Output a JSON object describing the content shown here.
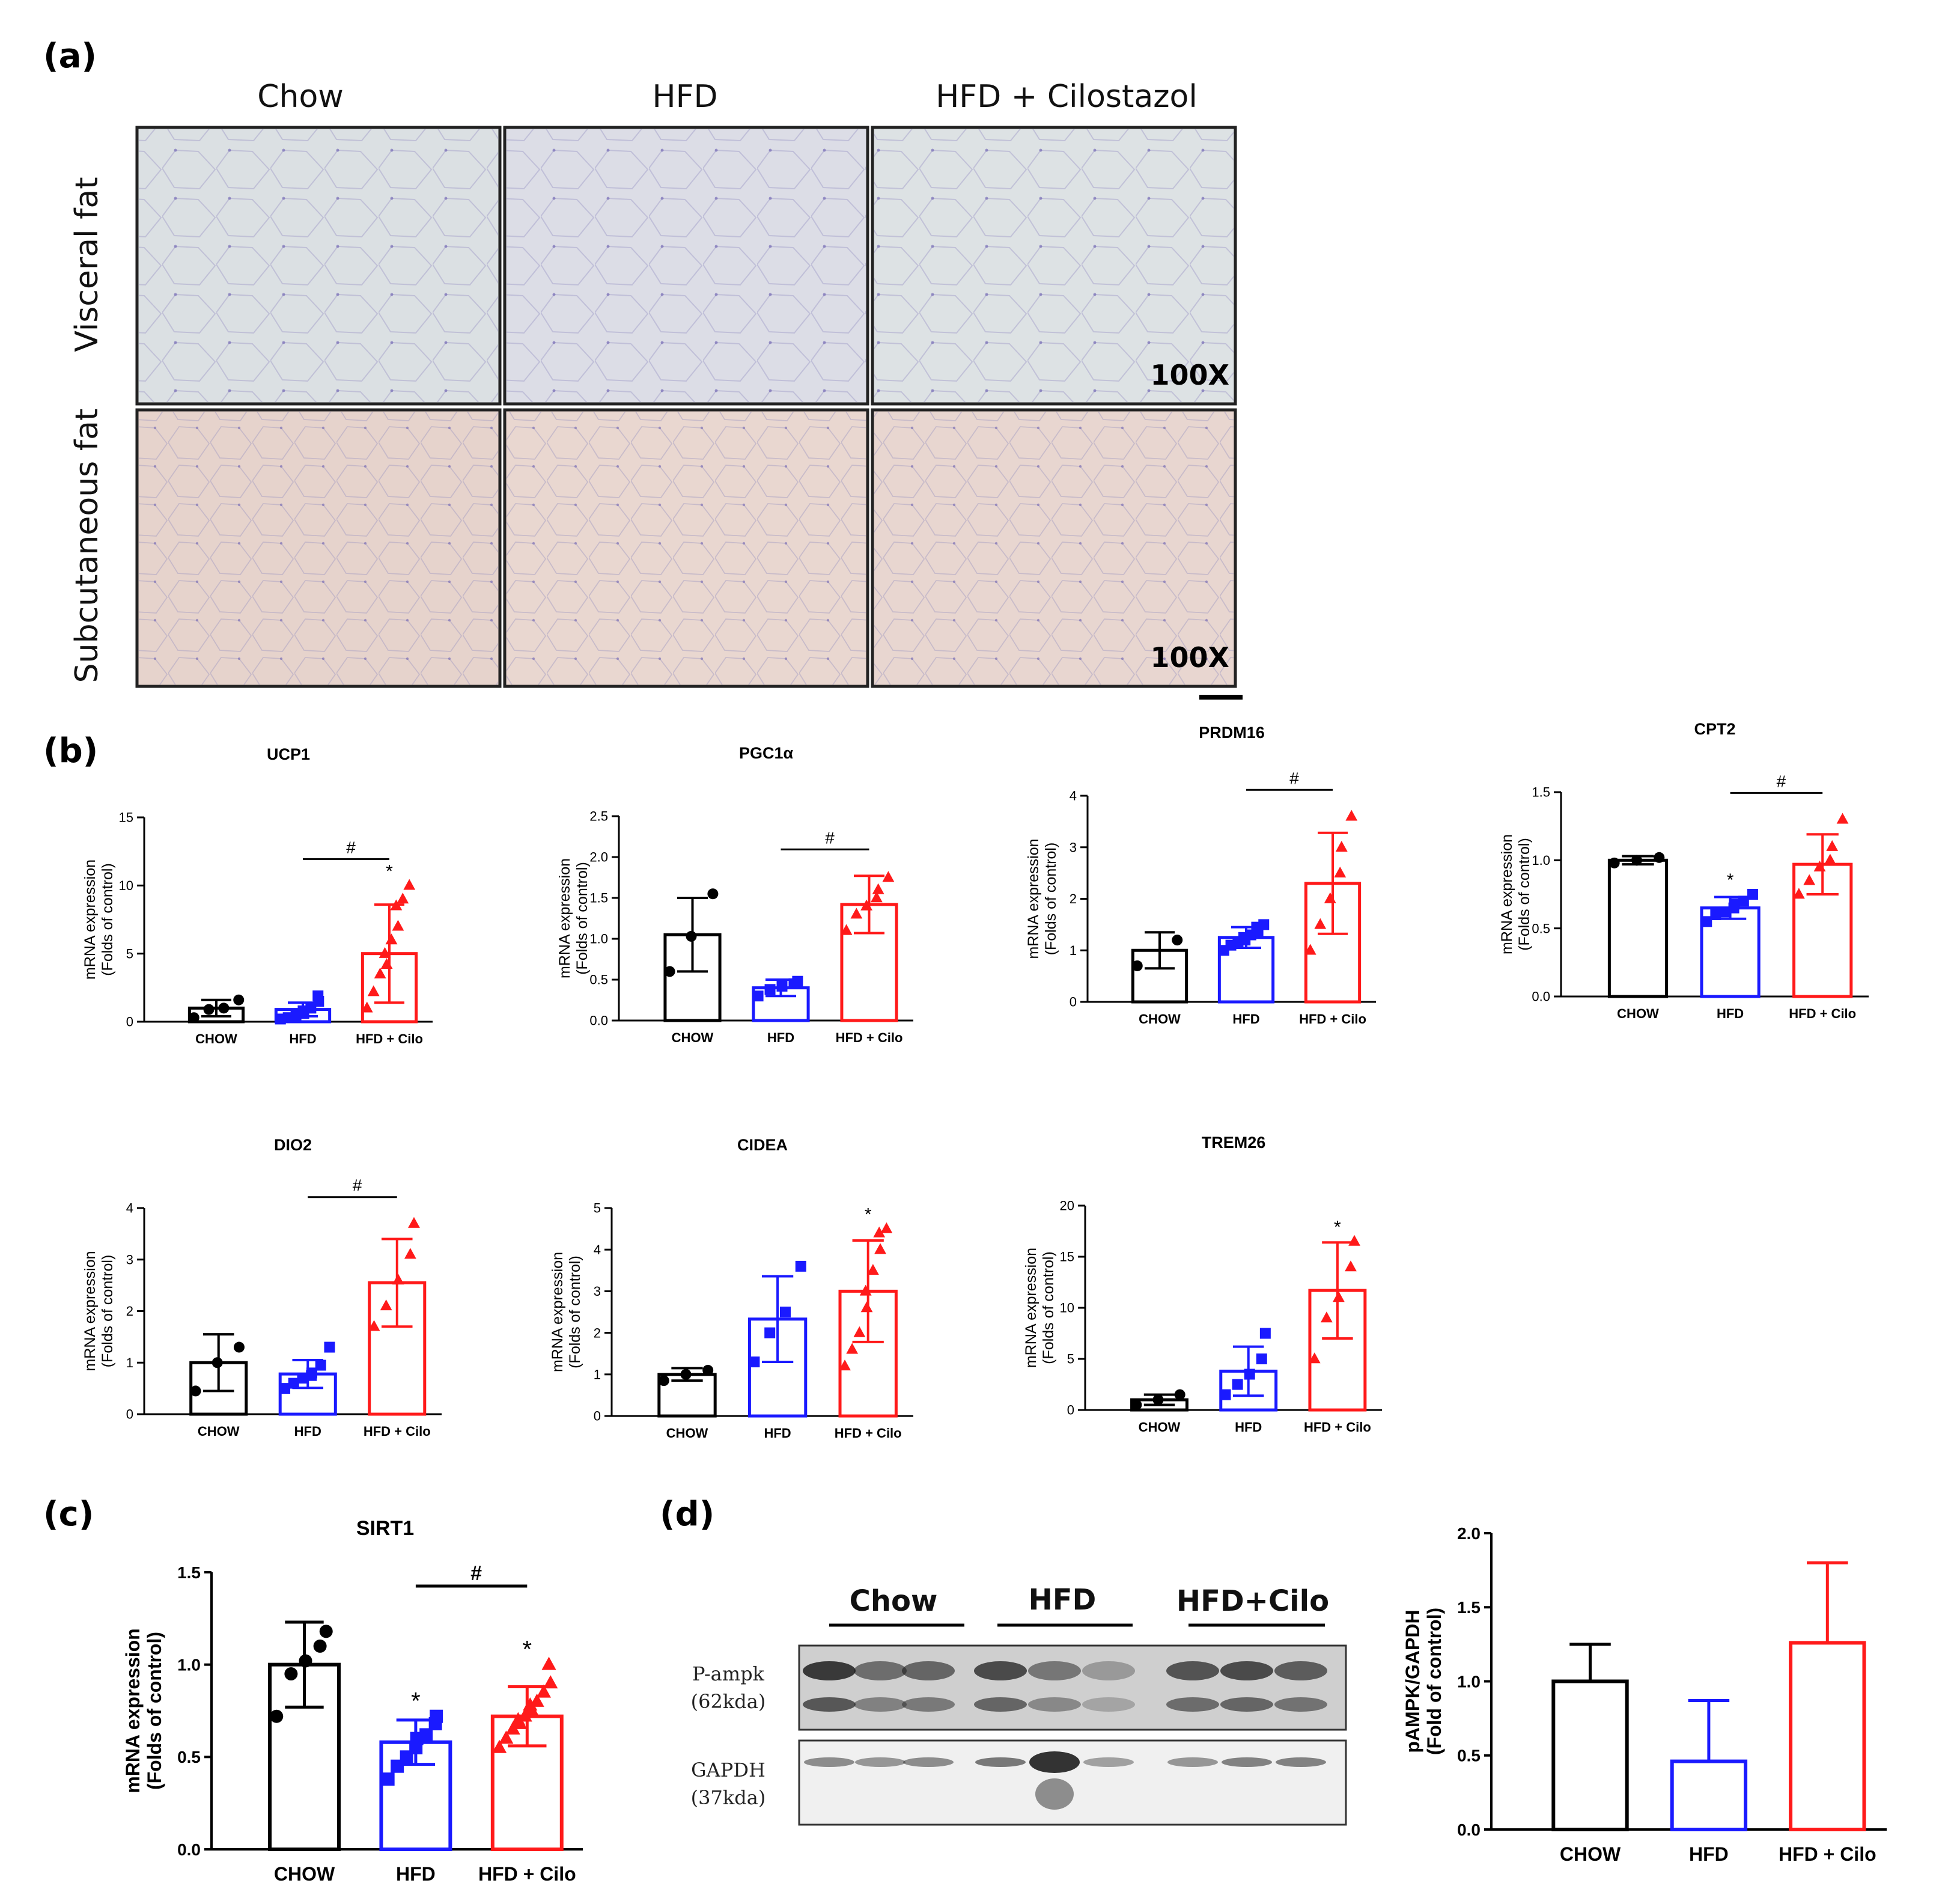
{
  "colors": {
    "chow": "#000000",
    "hfd": "#1a1aff",
    "cilo": "#ff1a1a",
    "visceral_bg": "#dbe0e3",
    "subcut_bg": "#e8d6d0"
  },
  "panel_a": {
    "letter": "(a)",
    "columns": [
      "Chow",
      "HFD",
      "HFD + Cilostazol"
    ],
    "rows": [
      "Visceral fat",
      "Subcutaneous fat"
    ],
    "magnification": "100X"
  },
  "panel_b": {
    "letter": "(b)"
  },
  "panel_c": {
    "letter": "(c)"
  },
  "panel_d": {
    "letter": "(d)",
    "blot_groups": [
      "Chow",
      "HFD",
      "HFD+Cilo"
    ],
    "bands": [
      {
        "name": "P-ampk",
        "size": "(62kda)"
      },
      {
        "name": "GAPDH",
        "size": "(37kda)"
      }
    ]
  },
  "chart_data": [
    {
      "id": "ucp1",
      "type": "bar",
      "title": "UCP1",
      "ylabel": "mRNA expression",
      "ylabel2": "(Folds of control)",
      "ylim": [
        0,
        15
      ],
      "yticks": [
        "0",
        "5",
        "10",
        "15"
      ],
      "categories": [
        "CHOW",
        "HFD",
        "HFD + Cilo"
      ],
      "means": [
        1.0,
        0.9,
        5.0
      ],
      "sd": [
        0.6,
        0.5,
        3.6
      ],
      "points": [
        [
          0.3,
          0.9,
          1.0,
          1.6
        ],
        [
          0.2,
          0.3,
          0.5,
          0.6,
          0.8,
          1.0,
          1.5,
          1.9
        ],
        [
          1.0,
          2.2,
          3.5,
          4.2,
          5.0,
          6.0,
          7.0,
          8.5,
          9.0,
          10.0
        ]
      ],
      "annotations": [
        {
          "text": "#",
          "from": 1,
          "to": 2
        },
        {
          "text": "*",
          "over": 2
        }
      ]
    },
    {
      "id": "pgc1a",
      "type": "bar",
      "title": "PGC1α",
      "ylabel": "mRNA expression",
      "ylabel2": "(Folds of control)",
      "ylim": [
        0,
        2.5
      ],
      "yticks": [
        "0.0",
        "0.5",
        "1.0",
        "1.5",
        "2.0",
        "2.5"
      ],
      "categories": [
        "CHOW",
        "HFD",
        "HFD + Cilo"
      ],
      "means": [
        1.05,
        0.4,
        1.42
      ],
      "sd": [
        0.45,
        0.1,
        0.35
      ],
      "points": [
        [
          0.6,
          1.03,
          1.55
        ],
        [
          0.3,
          0.38,
          0.42,
          0.45,
          0.48
        ],
        [
          1.1,
          1.3,
          1.4,
          1.5,
          1.6,
          1.75
        ]
      ],
      "annotations": [
        {
          "text": "#",
          "from": 1,
          "to": 2
        }
      ]
    },
    {
      "id": "prdm16",
      "type": "bar",
      "title": "PRDM16",
      "ylabel": "mRNA expression",
      "ylabel2": "(Folds of control)",
      "ylim": [
        0,
        4
      ],
      "yticks": [
        "0",
        "1",
        "2",
        "3",
        "4"
      ],
      "categories": [
        "CHOW",
        "HFD",
        "HFD + Cilo"
      ],
      "means": [
        1.0,
        1.25,
        2.3
      ],
      "sd": [
        0.35,
        0.2,
        0.98
      ],
      "points": [
        [
          0.7,
          1.2
        ],
        [
          1.0,
          1.1,
          1.15,
          1.2,
          1.25,
          1.3,
          1.35,
          1.45,
          1.5
        ],
        [
          1.0,
          1.5,
          2.0,
          2.5,
          3.0,
          3.6
        ]
      ],
      "annotations": [
        {
          "text": "#",
          "from": 1,
          "to": 2
        }
      ]
    },
    {
      "id": "cpt2",
      "type": "bar",
      "title": "CPT2",
      "ylabel": "mRNA expression",
      "ylabel2": "(Folds of control)",
      "ylim": [
        0,
        1.5
      ],
      "yticks": [
        "0.0",
        "0.5",
        "1.0",
        "1.5"
      ],
      "categories": [
        "CHOW",
        "HFD",
        "HFD + Cilo"
      ],
      "means": [
        1.0,
        0.65,
        0.97
      ],
      "sd": [
        0.03,
        0.08,
        0.22
      ],
      "points": [
        [
          0.98,
          1.0,
          1.02
        ],
        [
          0.55,
          0.6,
          0.62,
          0.65,
          0.68,
          0.7,
          0.75
        ],
        [
          0.75,
          0.85,
          0.95,
          1.0,
          1.1,
          1.3
        ]
      ],
      "annotations": [
        {
          "text": "#",
          "from": 1,
          "to": 2
        },
        {
          "text": "*",
          "over": 1
        }
      ]
    },
    {
      "id": "dio2",
      "type": "bar",
      "title": "DIO2",
      "ylabel": "mRNA expression",
      "ylabel2": "(Folds of control)",
      "ylim": [
        0,
        4
      ],
      "yticks": [
        "0",
        "1",
        "2",
        "3",
        "4"
      ],
      "categories": [
        "CHOW",
        "HFD",
        "HFD + Cilo"
      ],
      "means": [
        1.0,
        0.78,
        2.55
      ],
      "sd": [
        0.55,
        0.27,
        0.85
      ],
      "points": [
        [
          0.45,
          1.0,
          1.3
        ],
        [
          0.5,
          0.6,
          0.7,
          0.75,
          0.8,
          0.95,
          1.3
        ],
        [
          1.7,
          2.1,
          2.6,
          3.1,
          3.7
        ]
      ],
      "annotations": [
        {
          "text": "#",
          "from": 1,
          "to": 2
        }
      ]
    },
    {
      "id": "cidea",
      "type": "bar",
      "title": "CIDEA",
      "ylabel": "mRNA expression",
      "ylabel2": "(Folds of control)",
      "ylim": [
        0,
        5
      ],
      "yticks": [
        "0",
        "1",
        "2",
        "3",
        "4",
        "5"
      ],
      "categories": [
        "CHOW",
        "HFD",
        "HFD + Cilo"
      ],
      "means": [
        1.0,
        2.33,
        3.0
      ],
      "sd": [
        0.15,
        1.03,
        1.22
      ],
      "points": [
        [
          0.85,
          1.0,
          1.1
        ],
        [
          1.3,
          2.0,
          2.5,
          3.6
        ],
        [
          1.2,
          1.6,
          2.0,
          2.6,
          3.0,
          3.5,
          4.0,
          4.4,
          4.5
        ]
      ],
      "annotations": [
        {
          "text": "*",
          "over": 2
        }
      ]
    },
    {
      "id": "trem26",
      "type": "bar",
      "title": "TREM26",
      "ylabel": "mRNA expression",
      "ylabel2": "(Folds of control)",
      "ylim": [
        0,
        20
      ],
      "yticks": [
        "0",
        "5",
        "10",
        "15",
        "20"
      ],
      "categories": [
        "CHOW",
        "HFD",
        "HFD + Cilo"
      ],
      "means": [
        1.0,
        3.8,
        11.7
      ],
      "sd": [
        0.5,
        2.4,
        4.7
      ],
      "points": [
        [
          0.5,
          1.0,
          1.5
        ],
        [
          1.5,
          2.5,
          3.5,
          5.0,
          7.5
        ],
        [
          5.0,
          9.0,
          11.0,
          14.0,
          16.5
        ]
      ],
      "annotations": [
        {
          "text": "*",
          "over": 2
        }
      ]
    },
    {
      "id": "sirt1",
      "type": "bar",
      "title": "SIRT1",
      "ylabel": "mRNA expression",
      "ylabel2": "(Folds of control)",
      "ylim": [
        0,
        1.5
      ],
      "yticks": [
        "0.0",
        "0.5",
        "1.0",
        "1.5"
      ],
      "categories": [
        "CHOW",
        "HFD",
        "HFD + Cilo"
      ],
      "means": [
        1.0,
        0.58,
        0.72
      ],
      "sd": [
        0.23,
        0.12,
        0.16
      ],
      "points": [
        [
          0.72,
          0.95,
          1.02,
          1.1,
          1.18
        ],
        [
          0.38,
          0.45,
          0.5,
          0.55,
          0.6,
          0.62,
          0.68,
          0.72
        ],
        [
          0.55,
          0.6,
          0.65,
          0.68,
          0.7,
          0.72,
          0.75,
          0.78,
          0.8,
          0.85,
          0.9,
          1.0
        ]
      ],
      "annotations": [
        {
          "text": "#",
          "from": 1,
          "to": 2
        },
        {
          "text": "*",
          "over": 1
        },
        {
          "text": "*",
          "over": 2
        }
      ]
    },
    {
      "id": "pampk",
      "type": "bar",
      "title": "",
      "ylabel": "pAMPK/GAPDH",
      "ylabel2": "(Fold of control)",
      "ylim": [
        0,
        2.0
      ],
      "yticks": [
        "0.0",
        "0.5",
        "1.0",
        "1.5",
        "2.0"
      ],
      "categories": [
        "CHOW",
        "HFD",
        "HFD + Cilo"
      ],
      "means": [
        1.0,
        0.46,
        1.26
      ],
      "sd": [
        0.25,
        0.41,
        0.54
      ],
      "points": [
        [],
        [],
        []
      ],
      "annotations": []
    }
  ]
}
